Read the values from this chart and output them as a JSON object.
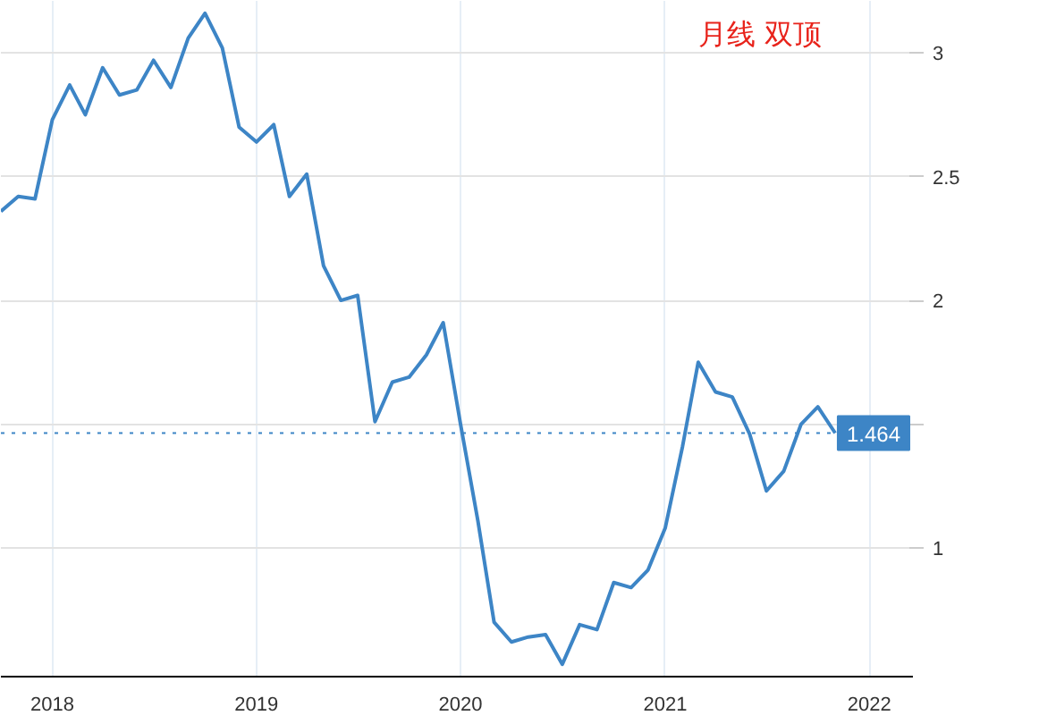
{
  "chart_data": {
    "type": "line",
    "annotations": [
      "月线  双顶"
    ],
    "x": [
      "2017-10",
      "2017-11",
      "2017-12",
      "2018-01",
      "2018-02",
      "2018-03",
      "2018-04",
      "2018-05",
      "2018-06",
      "2018-07",
      "2018-08",
      "2018-09",
      "2018-10",
      "2018-11",
      "2018-12",
      "2019-01",
      "2019-02",
      "2019-03",
      "2019-04",
      "2019-05",
      "2019-06",
      "2019-07",
      "2019-08",
      "2019-09",
      "2019-10",
      "2019-11",
      "2019-12",
      "2020-01",
      "2020-02",
      "2020-03",
      "2020-04",
      "2020-05",
      "2020-06",
      "2020-07",
      "2020-08",
      "2020-09",
      "2020-10",
      "2020-11",
      "2020-12",
      "2021-01",
      "2021-02",
      "2021-03",
      "2021-04",
      "2021-05",
      "2021-06",
      "2021-07",
      "2021-08",
      "2021-09",
      "2021-10",
      "2021-11"
    ],
    "series": [
      {
        "color": "#3d85c6",
        "values": [
          2.36,
          2.42,
          2.41,
          2.73,
          2.87,
          2.75,
          2.94,
          2.83,
          2.85,
          2.97,
          2.86,
          3.06,
          3.16,
          3.02,
          2.7,
          2.64,
          2.71,
          2.42,
          2.51,
          2.14,
          2.0,
          2.02,
          1.51,
          1.67,
          1.69,
          1.78,
          1.91,
          1.5,
          1.11,
          0.7,
          0.62,
          0.64,
          0.65,
          0.53,
          0.69,
          0.67,
          0.86,
          0.84,
          0.91,
          1.08,
          1.41,
          1.75,
          1.63,
          1.61,
          1.46,
          1.23,
          1.31,
          1.5,
          1.57,
          1.464
        ]
      }
    ],
    "xlim": [
      "2017-10-01",
      "2022-03-20"
    ],
    "xticks": [
      "2018",
      "2019",
      "2020",
      "2021",
      "2022"
    ],
    "ylim": [
      0.48,
      3.21
    ],
    "yticks": [
      1,
      {
        "value": 1.5,
        "label": null
      },
      2,
      2.5,
      3
    ],
    "ref_lines": [
      {
        "axis": "y",
        "value": 1.464,
        "label": "1.464",
        "color": "#3d85c6",
        "line_style": "dotted"
      }
    ],
    "grid": true,
    "marker": "none",
    "line_style": "solid"
  }
}
